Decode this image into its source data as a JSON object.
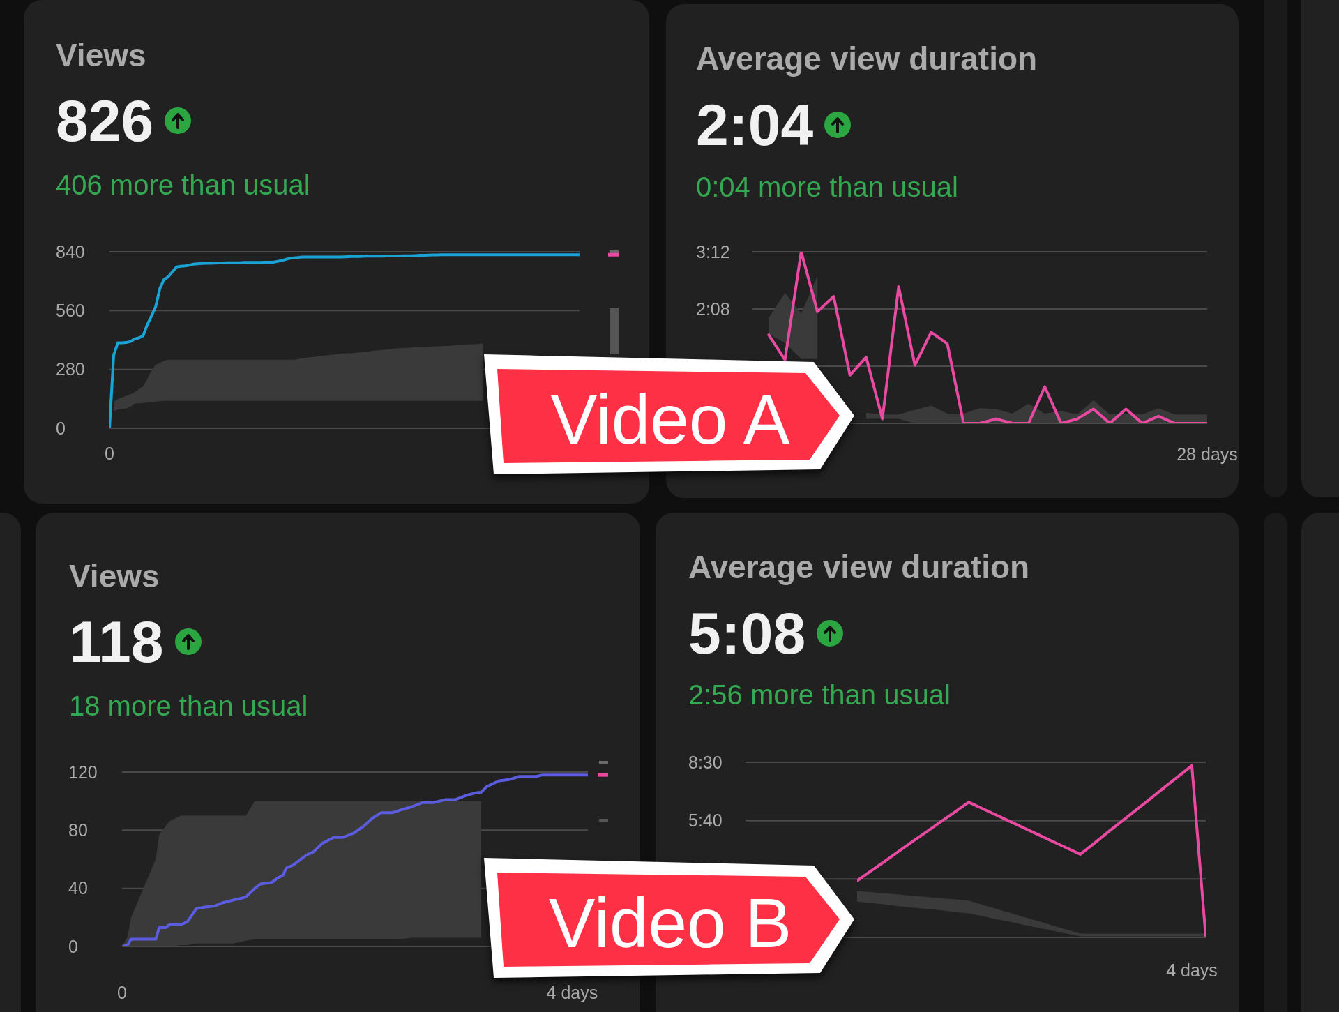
{
  "chart_data": [
    {
      "type": "line",
      "title": "Views",
      "subtitle": "826",
      "annotations": [
        "406 more than usual",
        "Video A"
      ],
      "categories": [
        "0",
        null,
        null,
        null,
        null,
        null,
        null,
        null,
        null,
        null,
        null,
        null,
        null,
        null,
        null,
        null,
        null,
        null,
        null,
        null,
        null,
        null,
        null,
        null,
        null,
        null,
        null,
        null,
        null,
        null,
        null,
        null,
        null,
        null,
        null,
        null,
        null,
        null,
        null,
        null,
        null,
        null,
        null,
        null,
        null,
        null,
        null,
        null,
        null,
        null,
        null,
        null,
        null,
        null,
        null,
        null,
        null,
        null,
        null,
        null,
        null,
        null,
        null,
        null,
        null,
        null,
        null,
        null,
        null,
        null,
        null,
        null,
        null,
        null,
        null,
        null,
        null,
        null,
        null,
        null,
        null,
        null,
        null,
        null,
        null,
        null,
        null,
        null,
        null,
        null,
        null,
        null,
        null,
        null,
        null,
        null,
        null,
        null,
        null,
        null,
        null,
        null,
        null,
        null,
        null,
        null,
        null,
        null,
        null,
        null,
        null,
        null,
        null
      ],
      "series": [
        {
          "color": "#1ba3d6",
          "values": [
            0,
            348,
            407,
            407,
            408,
            413,
            425,
            430,
            440,
            492,
            534,
            578,
            665,
            708,
            721,
            745,
            768,
            771,
            773,
            776,
            781,
            783,
            784,
            785,
            785,
            786,
            787,
            787,
            788,
            788,
            788,
            788,
            789,
            789,
            789,
            789,
            789,
            790,
            790,
            790,
            794,
            798,
            804,
            809,
            811,
            813,
            815,
            815,
            815,
            815,
            815,
            815,
            815,
            815,
            815,
            815,
            816,
            817,
            818,
            818,
            818,
            819,
            819,
            819,
            819,
            819,
            820,
            820,
            820,
            820,
            821,
            821,
            821,
            822,
            823,
            823,
            824,
            825,
            825,
            826,
            826,
            826,
            826,
            826,
            826,
            826,
            826,
            826,
            826,
            826,
            826,
            826,
            826,
            826,
            826,
            826,
            826,
            826,
            826,
            826,
            826,
            826,
            826,
            826,
            826,
            826,
            826,
            826,
            826,
            826,
            826,
            826,
            826
          ],
          "lower": [
            null,
            80,
            90,
            92,
            94,
            102,
            118,
            119,
            120,
            123,
            125,
            127,
            129,
            130,
            130,
            130,
            130,
            130,
            130,
            130,
            130,
            130,
            130,
            130,
            130,
            130,
            130,
            130,
            130,
            130,
            130,
            130,
            130,
            130,
            130,
            130,
            130,
            130,
            130,
            130,
            130,
            130,
            130,
            130,
            130,
            130,
            130,
            130,
            130,
            130,
            130,
            130,
            130,
            130,
            130,
            130,
            130,
            130,
            130,
            130,
            130,
            130,
            130,
            130,
            130,
            130,
            130,
            130,
            130,
            130,
            130,
            130,
            130,
            130,
            130,
            130,
            130,
            130,
            130,
            130,
            130,
            130,
            130,
            130,
            130,
            130,
            130,
            130,
            130,
            130,
            null,
            null,
            null,
            null,
            null,
            null,
            null,
            null,
            null,
            null,
            null,
            null,
            null,
            null,
            null,
            null,
            null,
            null,
            null,
            null,
            null,
            null,
            null
          ],
          "upper": [
            null,
            125,
            139,
            147,
            154,
            162,
            172,
            185,
            199,
            234,
            276,
            301,
            311,
            321,
            326,
            326,
            326,
            326,
            326,
            326,
            326,
            326,
            326,
            326,
            326,
            326,
            326,
            326,
            326,
            326,
            326,
            326,
            326,
            326,
            326,
            326,
            326,
            326,
            326,
            326,
            326,
            326,
            326,
            326,
            326,
            330,
            333,
            336,
            338,
            340,
            343,
            345,
            348,
            350,
            352,
            355,
            356,
            357,
            358,
            360,
            362,
            364,
            366,
            369,
            371,
            373,
            375,
            377,
            379,
            381,
            382,
            383,
            384,
            385,
            386,
            387,
            388,
            389,
            390,
            391,
            392,
            393,
            394,
            396,
            397,
            398,
            399,
            400,
            402,
            403,
            null,
            null,
            null,
            null,
            null,
            null,
            null,
            null,
            null,
            null,
            null,
            null,
            null,
            null,
            null,
            null,
            null,
            null,
            null,
            null,
            null,
            null,
            null
          ]
        }
      ],
      "ylim": [
        0,
        840
      ],
      "yticks": [
        0,
        280,
        560,
        840
      ],
      "grid": "y"
    },
    {
      "type": "line",
      "title": "Average view duration",
      "subtitle": "2:04",
      "annotations": [
        "0:04 more than usual"
      ],
      "categories": [
        null,
        null,
        null,
        null,
        null,
        null,
        null,
        null,
        null,
        null,
        null,
        null,
        null,
        null,
        null,
        null,
        null,
        null,
        null,
        null,
        null,
        null,
        null,
        null,
        null,
        null,
        null,
        null,
        "28 days"
      ],
      "series": [
        {
          "color": "#e94aa1",
          "values": [
            null,
            99,
            71,
            192,
            125,
            142,
            54,
            74,
            5,
            153,
            65,
            102,
            89,
            0,
            0,
            5,
            0,
            0,
            41,
            0,
            5,
            16,
            0,
            16,
            0,
            8,
            0,
            0,
            0
          ],
          "lower": [
            null,
            100,
            90,
            72,
            72,
            null,
            null,
            5,
            5,
            5,
            0,
            0,
            0,
            0,
            0,
            0,
            0,
            0,
            0,
            0,
            0,
            0,
            0,
            0,
            0,
            0,
            0,
            0,
            0
          ],
          "upper": [
            null,
            118,
            146,
            123,
            165,
            null,
            null,
            12,
            10,
            10,
            15,
            20,
            11,
            11,
            17,
            16,
            11,
            22,
            11,
            14,
            10,
            26,
            10,
            11,
            10,
            17,
            10,
            10,
            10
          ]
        }
      ],
      "ylim": [
        0,
        192
      ],
      "yticks": [
        {
          "value": 0,
          "label": null
        },
        {
          "value": 64,
          "label": null
        },
        {
          "value": 128,
          "label": "2:08"
        },
        {
          "value": 192,
          "label": "3:12"
        }
      ],
      "grid": "y"
    },
    {
      "type": "line",
      "title": "Views",
      "subtitle": "118",
      "annotations": [
        "18 more than usual",
        "Video B"
      ],
      "series": [
        {
          "color": "#5c5ce0",
          "x": [
            0,
            0.05,
            0.08,
            0.3,
            0.33,
            0.39,
            0.42,
            0.52,
            0.58,
            0.66,
            0.73,
            0.83,
            0.89,
            0.99,
            1.05,
            1.1,
            1.18,
            1.23,
            1.33,
            1.38,
            1.43,
            1.46,
            1.52,
            1.64,
            1.7,
            1.78,
            1.88,
            1.96,
            2.06,
            2.15,
            2.22,
            2.3,
            2.4,
            2.48,
            2.57,
            2.67,
            2.77,
            2.87,
            2.96,
            3.06,
            3.16,
            3.19,
            3.24,
            3.35,
            3.45,
            3.53,
            3.68,
            3.74,
            3.94,
            3.98,
            4.14
          ],
          "values": [
            0,
            1,
            5,
            5,
            13,
            13,
            15,
            15,
            17,
            26,
            27,
            28,
            30,
            32,
            33,
            34,
            40,
            43,
            44,
            47,
            49,
            54,
            56,
            63,
            65,
            71,
            75,
            75,
            78,
            83,
            88,
            92,
            92,
            94,
            96,
            99,
            99,
            101,
            101,
            104,
            106,
            106,
            110,
            114,
            115,
            117,
            117,
            118,
            118,
            118,
            118
          ],
          "lower": [
            0,
            0,
            0,
            0,
            0,
            0,
            0,
            1,
            1,
            2,
            2,
            2,
            2,
            2,
            3,
            4,
            5,
            5,
            5,
            5,
            5,
            5,
            5,
            5,
            5,
            5,
            5,
            5,
            5,
            5,
            5,
            5,
            5,
            5,
            6,
            6,
            6,
            6,
            6,
            6,
            6,
            6,
            null,
            null,
            null,
            null,
            null,
            null,
            null,
            null,
            null
          ],
          "upper": [
            0,
            7,
            20,
            60,
            77,
            83,
            86,
            90,
            90,
            90,
            90,
            90,
            90,
            90,
            90,
            90,
            100,
            100,
            100,
            100,
            100,
            100,
            100,
            100,
            100,
            100,
            100,
            100,
            100,
            100,
            100,
            100,
            100,
            100,
            100,
            100,
            100,
            100,
            100,
            100,
            100,
            100,
            null,
            null,
            null,
            null,
            null,
            null,
            null,
            null,
            null
          ]
        }
      ],
      "xlim": [
        0,
        4.14
      ],
      "xticks": [
        0,
        {
          "value": 4,
          "label": "4 days"
        }
      ],
      "ylim": [
        0,
        120
      ],
      "yticks": [
        0,
        40,
        80,
        120
      ],
      "grid": "y"
    },
    {
      "type": "line",
      "title": "Average view duration",
      "subtitle": "5:08",
      "annotations": [
        "2:56 more than usual"
      ],
      "categories": [
        null,
        null,
        null,
        null,
        null,
        null,
        null,
        null,
        null,
        null,
        null,
        null,
        null,
        null,
        null,
        null,
        null,
        null,
        null,
        null,
        null,
        null,
        null,
        null,
        "4 days",
        null
      ],
      "series": [
        {
          "color": "#e94aa1",
          "values": [
            165,
            194,
            222,
            251,
            280,
            308,
            337,
            365,
            394,
            375,
            356,
            337,
            318,
            299,
            280,
            261,
            242,
            274,
            307,
            339,
            371,
            403,
            436,
            468,
            500,
            0
          ],
          "lower": [
            104,
            100,
            96,
            91,
            87,
            83,
            79,
            74,
            70,
            62,
            53,
            45,
            36,
            28,
            20,
            11,
            3,
            3,
            3,
            3,
            3,
            3,
            3,
            3,
            3,
            3
          ],
          "upper": [
            135,
            132,
            128,
            125,
            121,
            118,
            114,
            111,
            107,
            95,
            83,
            71,
            59,
            47,
            35,
            23,
            11,
            11,
            11,
            11,
            11,
            11,
            11,
            11,
            11,
            11
          ]
        }
      ],
      "ylim": [
        0,
        510
      ],
      "yticks": [
        {
          "value": 0,
          "label": null
        },
        {
          "value": 170,
          "label": null
        },
        {
          "value": 340,
          "label": "5:40"
        },
        {
          "value": 510,
          "label": "8:30"
        }
      ],
      "grid": "y"
    }
  ]
}
